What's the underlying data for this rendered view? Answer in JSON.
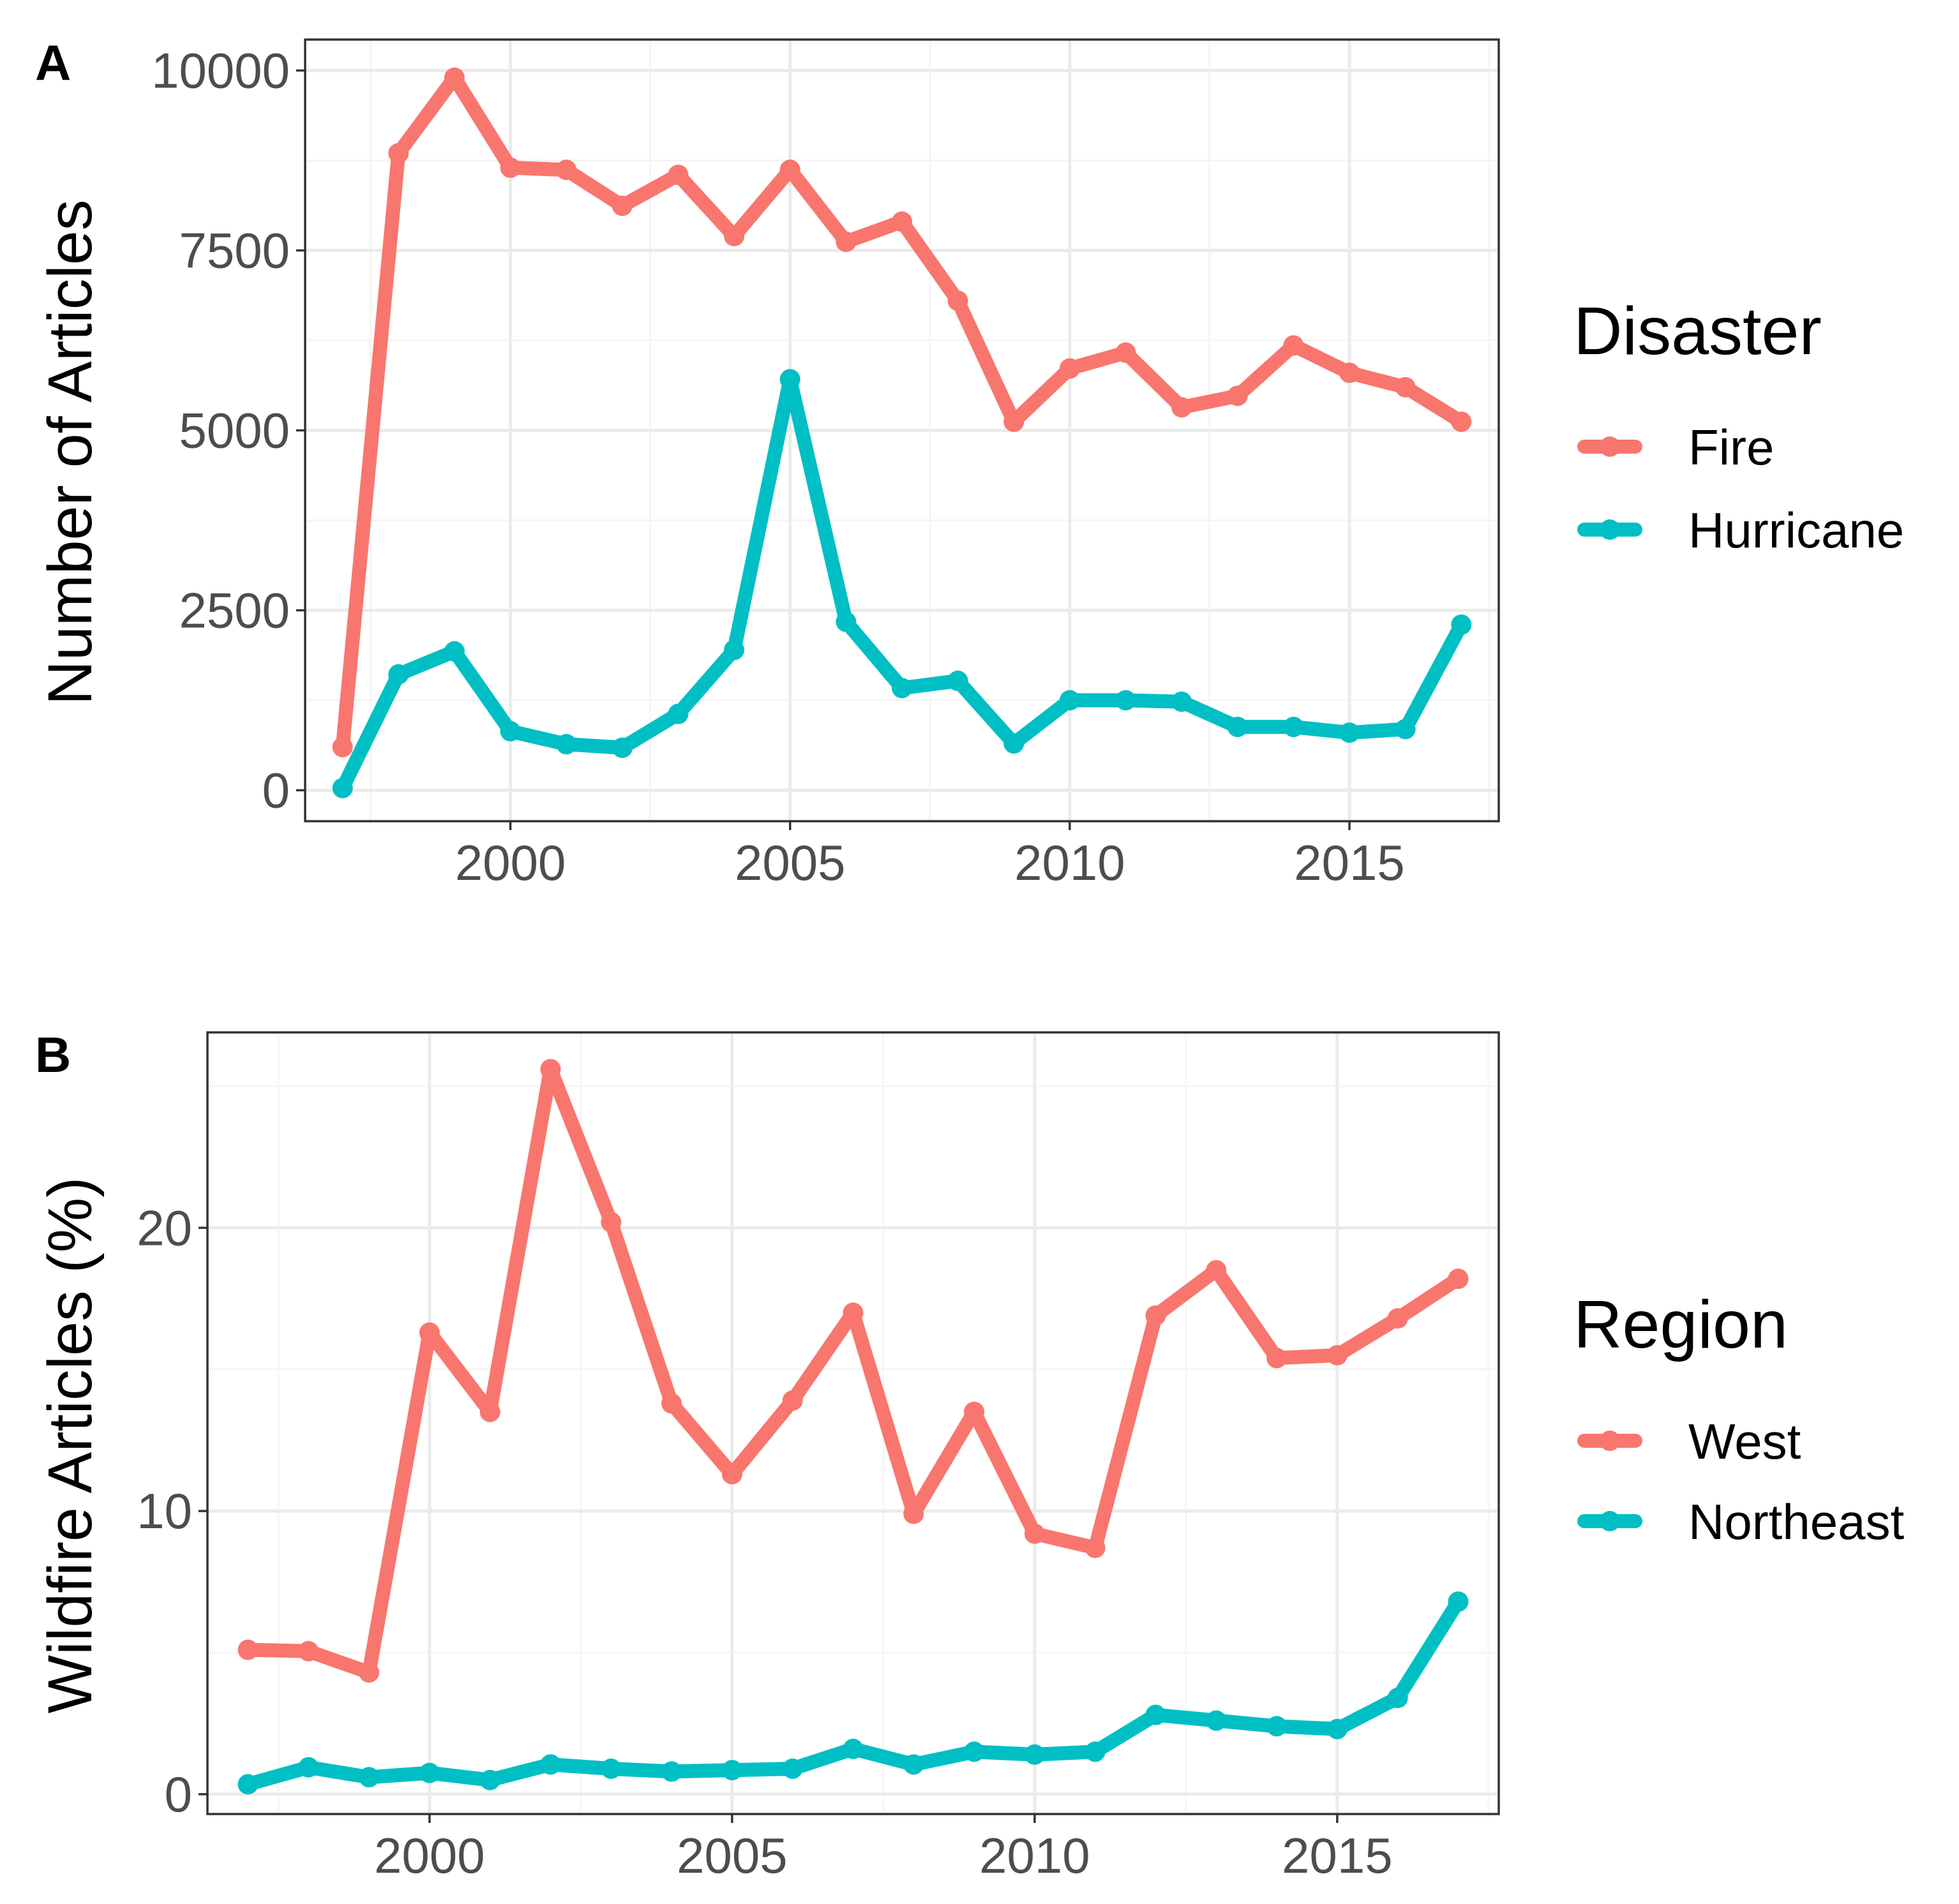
{
  "chart_data": [
    {
      "panel_label": "A",
      "type": "line",
      "title": "",
      "xlabel": "",
      "ylabel": "Number of Articles",
      "xlim": [
        1996.33,
        2017.67
      ],
      "ylim": [
        -430,
        10430
      ],
      "x_ticks": [
        2000,
        2005,
        2010,
        2015
      ],
      "x_tick_labels": [
        "2000",
        "2005",
        "2010",
        "2015"
      ],
      "x_minor_ticks": [
        1997.5,
        2002.5,
        2007.5,
        2012.5,
        2017.5
      ],
      "y_ticks": [
        0,
        2500,
        5000,
        7500,
        10000
      ],
      "y_tick_labels": [
        "0",
        "2500",
        "5000",
        "7500",
        "10000"
      ],
      "y_minor_ticks": [
        1250,
        3750,
        6250,
        8750
      ],
      "grid": true,
      "legend": {
        "title": "Disaster",
        "position": "right"
      },
      "x": [
        1997,
        1998,
        1999,
        2000,
        2001,
        2002,
        2003,
        2004,
        2005,
        2006,
        2007,
        2008,
        2009,
        2010,
        2011,
        2012,
        2013,
        2014,
        2015,
        2016,
        2017
      ],
      "series": [
        {
          "name": "Fire",
          "color": "#F8766D",
          "values": [
            600,
            8850,
            9900,
            8650,
            8620,
            8120,
            8550,
            7700,
            8620,
            7620,
            7900,
            6800,
            5120,
            5860,
            6080,
            5320,
            5480,
            6180,
            5800,
            5600,
            5120
          ]
        },
        {
          "name": "Hurricane",
          "color": "#00BFC4",
          "values": [
            30,
            1610,
            1930,
            820,
            640,
            590,
            1060,
            1950,
            5710,
            2340,
            1420,
            1520,
            650,
            1250,
            1250,
            1230,
            880,
            880,
            800,
            850,
            2300
          ]
        }
      ]
    },
    {
      "panel_label": "B",
      "type": "line",
      "title": "",
      "xlabel": "",
      "ylabel": "Wildfire Articles (%)",
      "xlim": [
        1996.33,
        2017.67
      ],
      "ylim": [
        -0.7,
        26.9
      ],
      "x_ticks": [
        2000,
        2005,
        2010,
        2015
      ],
      "x_tick_labels": [
        "2000",
        "2005",
        "2010",
        "2015"
      ],
      "x_minor_ticks": [
        1997.5,
        2002.5,
        2007.5,
        2012.5,
        2017.5
      ],
      "y_ticks": [
        0,
        10,
        20
      ],
      "y_tick_labels": [
        "0",
        "10",
        "20"
      ],
      "y_minor_ticks": [
        5,
        15,
        25
      ],
      "grid": true,
      "legend": {
        "title": "Region",
        "position": "right"
      },
      "x": [
        1997,
        1998,
        1999,
        2000,
        2001,
        2002,
        2003,
        2004,
        2005,
        2006,
        2007,
        2008,
        2009,
        2010,
        2011,
        2012,
        2013,
        2014,
        2015,
        2016,
        2017
      ],
      "series": [
        {
          "name": "West",
          "color": "#F8766D",
          "values": [
            5.1,
            5.05,
            4.3,
            16.3,
            13.5,
            25.6,
            20.2,
            13.8,
            11.3,
            13.9,
            17.0,
            9.9,
            13.5,
            9.2,
            8.7,
            16.9,
            18.5,
            15.4,
            15.5,
            16.8,
            18.2
          ]
        },
        {
          "name": "Northeast",
          "color": "#00BFC4",
          "values": [
            0.35,
            0.95,
            0.6,
            0.75,
            0.5,
            1.05,
            0.9,
            0.8,
            0.85,
            0.9,
            1.6,
            1.05,
            1.5,
            1.4,
            1.5,
            2.8,
            2.6,
            2.4,
            2.3,
            3.4,
            6.8
          ]
        }
      ]
    }
  ]
}
